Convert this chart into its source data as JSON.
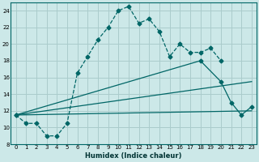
{
  "title": "",
  "xlabel": "Humidex (Indice chaleur)",
  "bg_color": "#cce8e8",
  "grid_color": "#aacccc",
  "line_color": "#006666",
  "xlim": [
    -0.5,
    23.5
  ],
  "ylim": [
    8,
    25
  ],
  "xticks": [
    0,
    1,
    2,
    3,
    4,
    5,
    6,
    7,
    8,
    9,
    10,
    11,
    12,
    13,
    14,
    15,
    16,
    17,
    18,
    19,
    20,
    21,
    22,
    23
  ],
  "yticks": [
    8,
    10,
    12,
    14,
    16,
    18,
    20,
    22,
    24
  ],
  "series1_x": [
    0,
    1,
    2,
    3,
    4,
    5,
    6,
    7,
    8,
    9,
    10,
    11,
    12,
    13,
    14,
    15,
    16,
    17,
    18,
    19,
    20
  ],
  "series1_y": [
    11.5,
    10.5,
    10.5,
    9.0,
    9.0,
    10.5,
    16.5,
    18.5,
    20.5,
    22.0,
    24.0,
    24.5,
    22.5,
    23.0,
    21.5,
    18.5,
    20.0,
    19.0,
    19.0,
    19.5,
    18.0
  ],
  "series2_x": [
    0,
    18,
    20,
    21,
    22,
    23
  ],
  "series2_y": [
    11.5,
    18.0,
    15.5,
    13.0,
    11.5,
    12.5
  ],
  "line3_x": [
    0,
    23
  ],
  "line3_y": [
    11.5,
    12.0
  ],
  "line4_x": [
    0,
    23
  ],
  "line4_y": [
    11.5,
    15.5
  ],
  "xlabel_fontsize": 6,
  "tick_fontsize": 5
}
